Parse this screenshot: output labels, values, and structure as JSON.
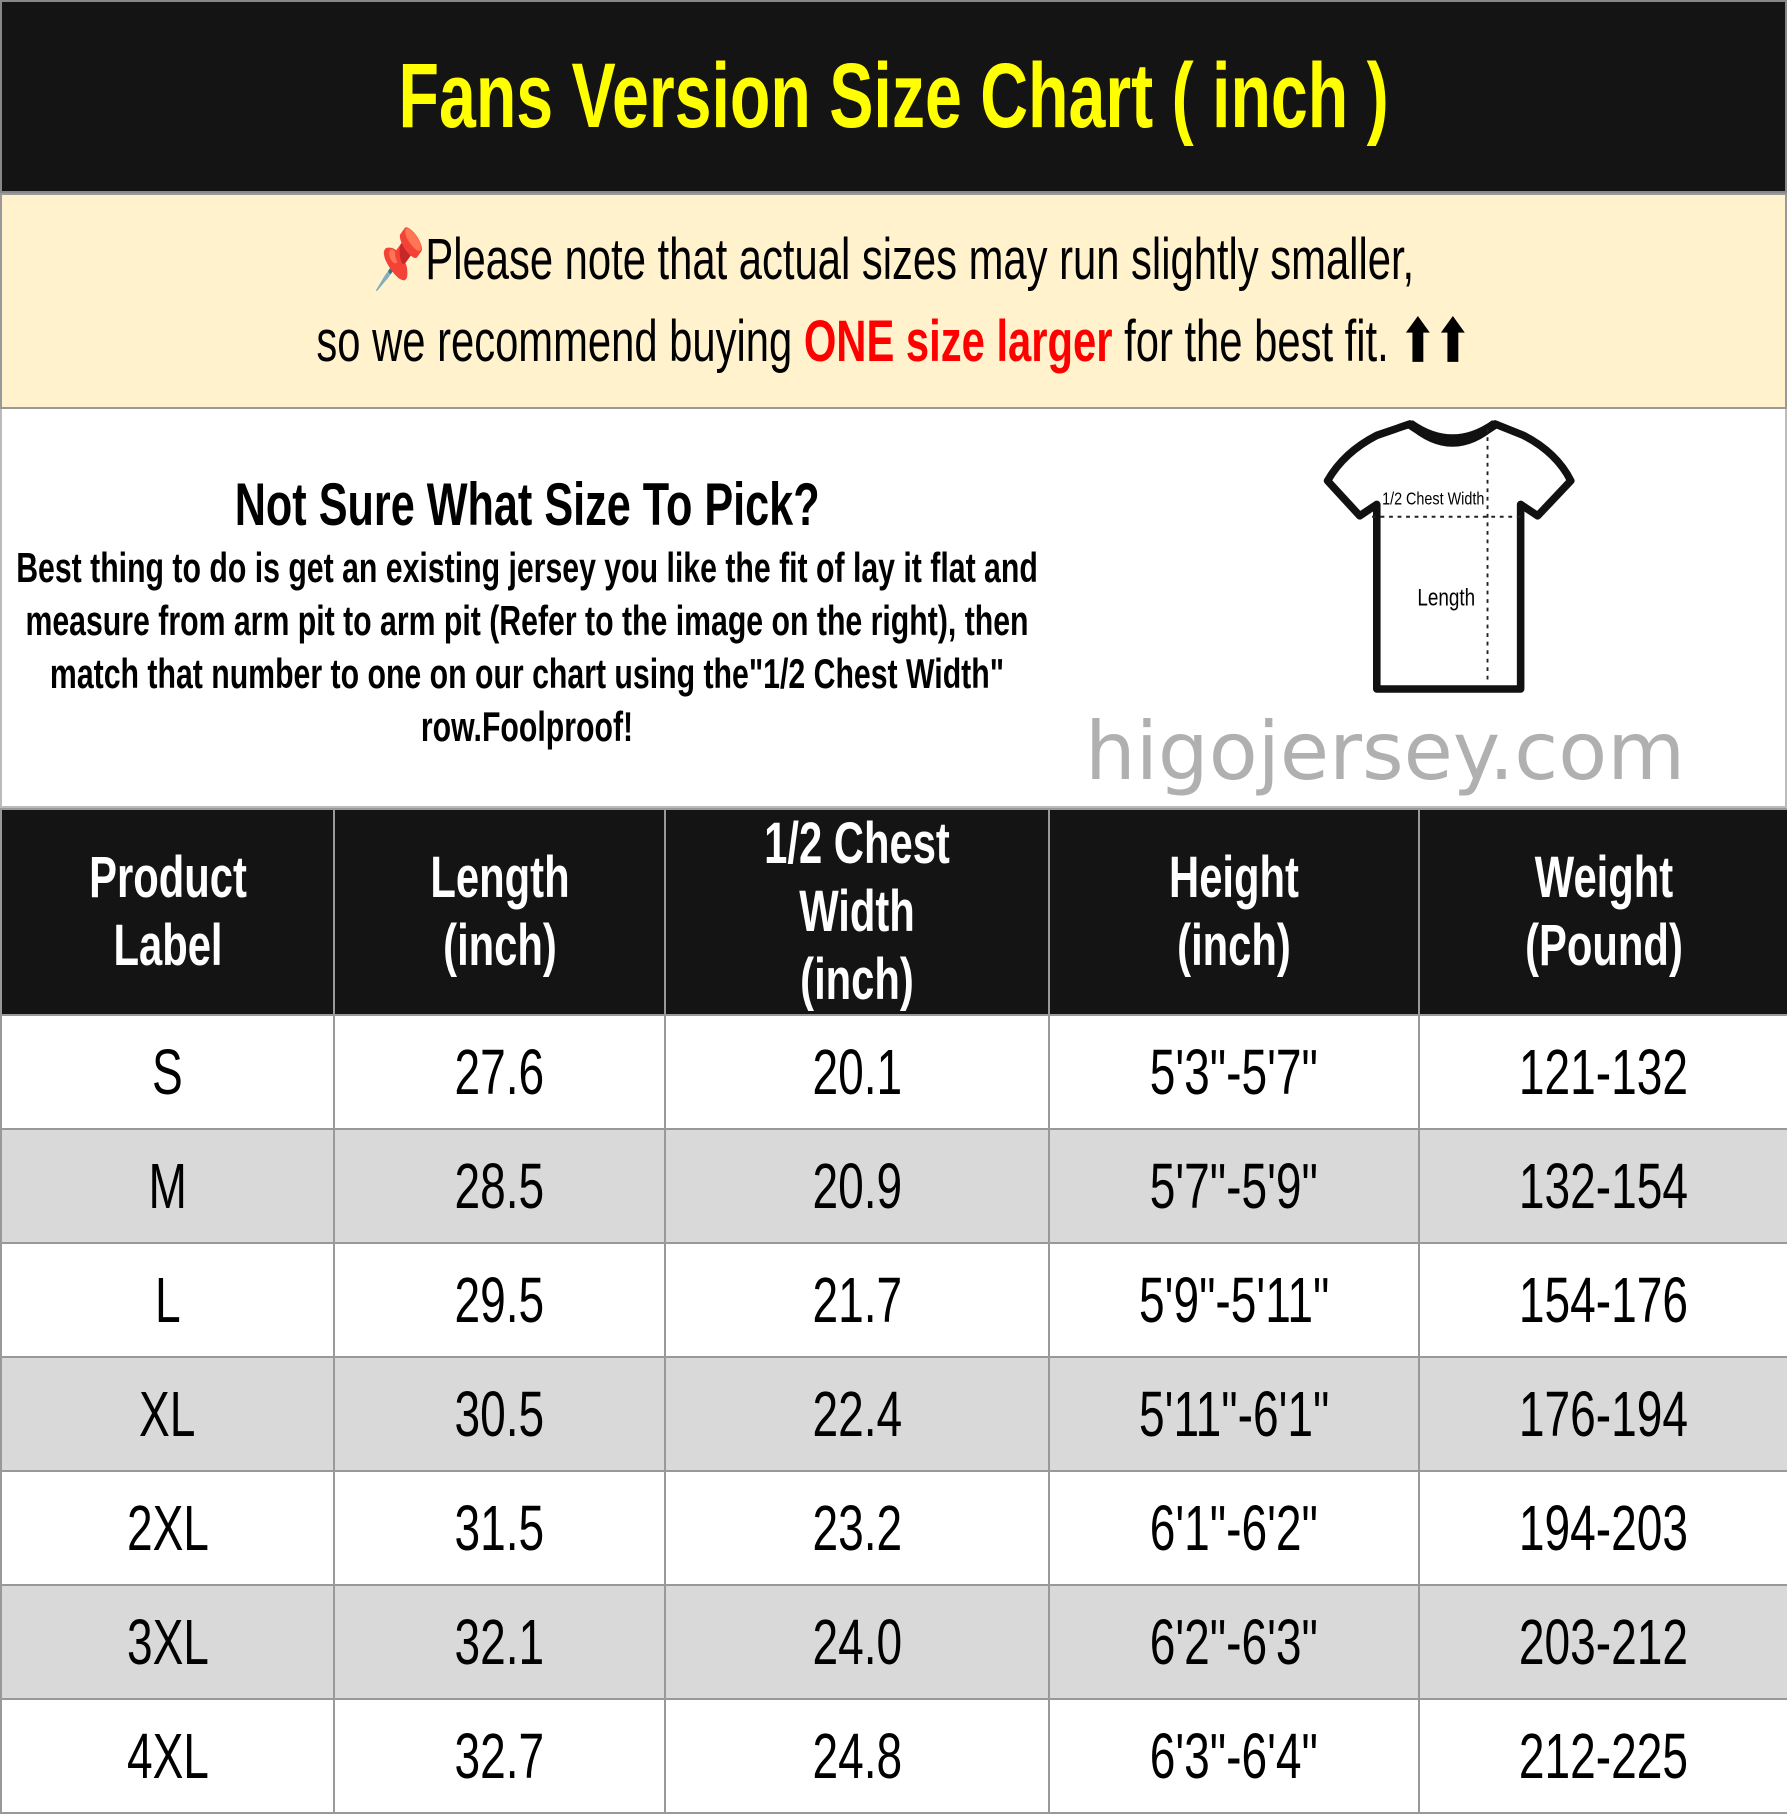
{
  "title": "Fans Version Size Chart ( inch )",
  "note": {
    "icon": "pushpin-icon",
    "line1": "Please note that actual sizes may run slightly smaller,",
    "line2_pre": "so we recommend buying ",
    "line2_highlight": "ONE size larger",
    "line2_post": " for the best fit.",
    "arrows": "⬆⬆",
    "highlight_color": "#ff0000"
  },
  "info": {
    "heading": "Not Sure What Size To Pick?",
    "body": "Best thing to do is get an existing jersey you like the fit of lay it flat and measure from arm pit to arm pit (Refer to the image on the right), then match that number to one on our chart using the\"1/2 Chest Width\" row.Foolproof!",
    "diagram": {
      "chest_label": "1/2 Chest Width",
      "length_label": "Length"
    }
  },
  "table": {
    "headers": [
      "Product Label",
      "Length (inch)",
      "1/2 Chest Width (inch)",
      "Height (inch)",
      "Weight (Pound)"
    ],
    "rows": [
      [
        "S",
        "27.6",
        "20.1",
        "5'3\"-5'7\"",
        "121-132"
      ],
      [
        "M",
        "28.5",
        "20.9",
        "5'7\"-5'9\"",
        "132-154"
      ],
      [
        "L",
        "29.5",
        "21.7",
        "5'9\"-5'11\"",
        "154-176"
      ],
      [
        "XL",
        "30.5",
        "22.4",
        "5'11\"-6'1\"",
        "176-194"
      ],
      [
        "2XL",
        "31.5",
        "23.2",
        "6'1\"-6'2\"",
        "194-203"
      ],
      [
        "3XL",
        "32.1",
        "24.0",
        "6'2\"-6'3\"",
        "203-212"
      ],
      [
        "4XL",
        "32.7",
        "24.8",
        "6'3\"-6'4\"",
        "212-225"
      ]
    ]
  },
  "watermark": "higojersey.com",
  "colors": {
    "title_bg": "#141414",
    "title_text": "#ffff00",
    "note_bg": "#fff2cc",
    "alt_row": "#d9d9d9"
  }
}
